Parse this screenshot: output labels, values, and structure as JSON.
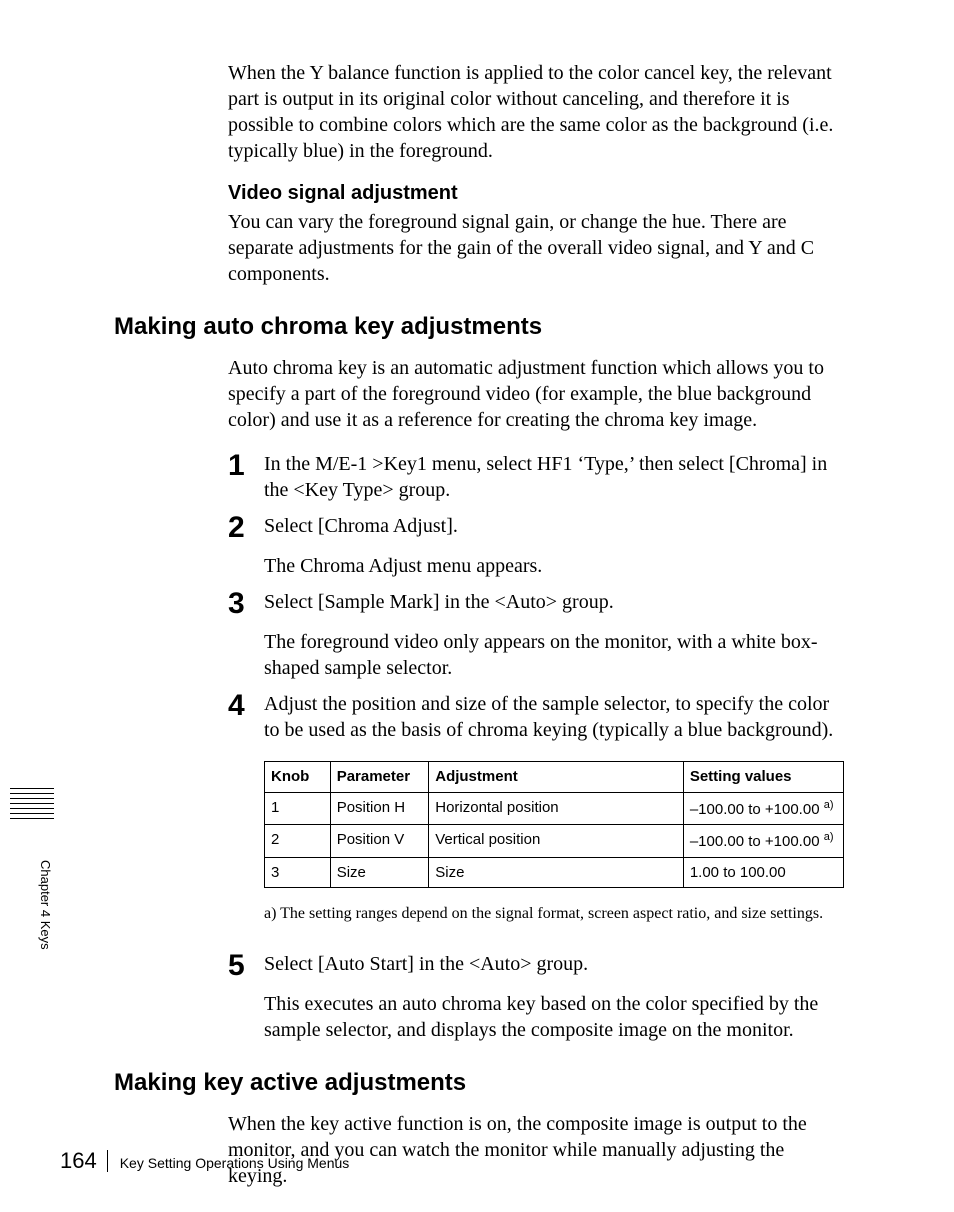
{
  "intro_para": "When the Y balance function is applied to the color cancel key, the relevant part is output in its original color without canceling, and therefore it is possible to combine colors which are the same color as the background (i.e. typically blue) in the foreground.",
  "video_signal": {
    "heading": "Video signal adjustment",
    "body": "You can vary the foreground signal gain, or change the hue. There are separate adjustments for the gain of the overall video signal, and Y and C components."
  },
  "section_auto": {
    "heading": "Making auto chroma key adjustments",
    "intro": "Auto chroma key is an automatic adjustment function which allows you to specify a part of the foreground video (for example, the blue background color) and use it as a reference for creating the chroma key image.",
    "steps": [
      {
        "n": "1",
        "text": "In the M/E-1 >Key1 menu, select HF1 ‘Type,’ then select [Chroma] in the <Key Type> group."
      },
      {
        "n": "2",
        "text": "Select [Chroma Adjust].",
        "follow": "The Chroma Adjust menu appears."
      },
      {
        "n": "3",
        "text": "Select [Sample Mark] in the <Auto> group.",
        "follow": "The foreground video only appears on the monitor, with a white box-shaped sample selector."
      },
      {
        "n": "4",
        "text": "Adjust the position and size of the sample selector, to specify the color to be used as the basis of chroma keying (typically a blue background)."
      },
      {
        "n": "5",
        "text": "Select [Auto Start] in the <Auto> group.",
        "follow": "This executes an auto chroma key based on the color specified by the sample selector, and displays the composite image on the monitor."
      }
    ],
    "table": {
      "headers": [
        "Knob",
        "Parameter",
        "Adjustment",
        "Setting values"
      ],
      "rows": [
        {
          "knob": "1",
          "param": "Position H",
          "adj": "Horizontal position",
          "val": "–100.00 to +100.00",
          "note": "a)"
        },
        {
          "knob": "2",
          "param": "Position V",
          "adj": "Vertical position",
          "val": "–100.00 to +100.00",
          "note": "a)"
        },
        {
          "knob": "3",
          "param": "Size",
          "adj": "Size",
          "val": "1.00 to 100.00",
          "note": ""
        }
      ],
      "footnote": "a) The setting ranges depend on the signal format, screen aspect ratio, and size settings."
    }
  },
  "section_active": {
    "heading": "Making key active adjustments",
    "body": "When the key active function is on, the composite image is output to the monitor, and you can watch the monitor while manually adjusting the keying."
  },
  "side_label": "Chapter 4  Keys",
  "footer": {
    "page": "164",
    "text": "Key Setting Operations Using Menus"
  }
}
